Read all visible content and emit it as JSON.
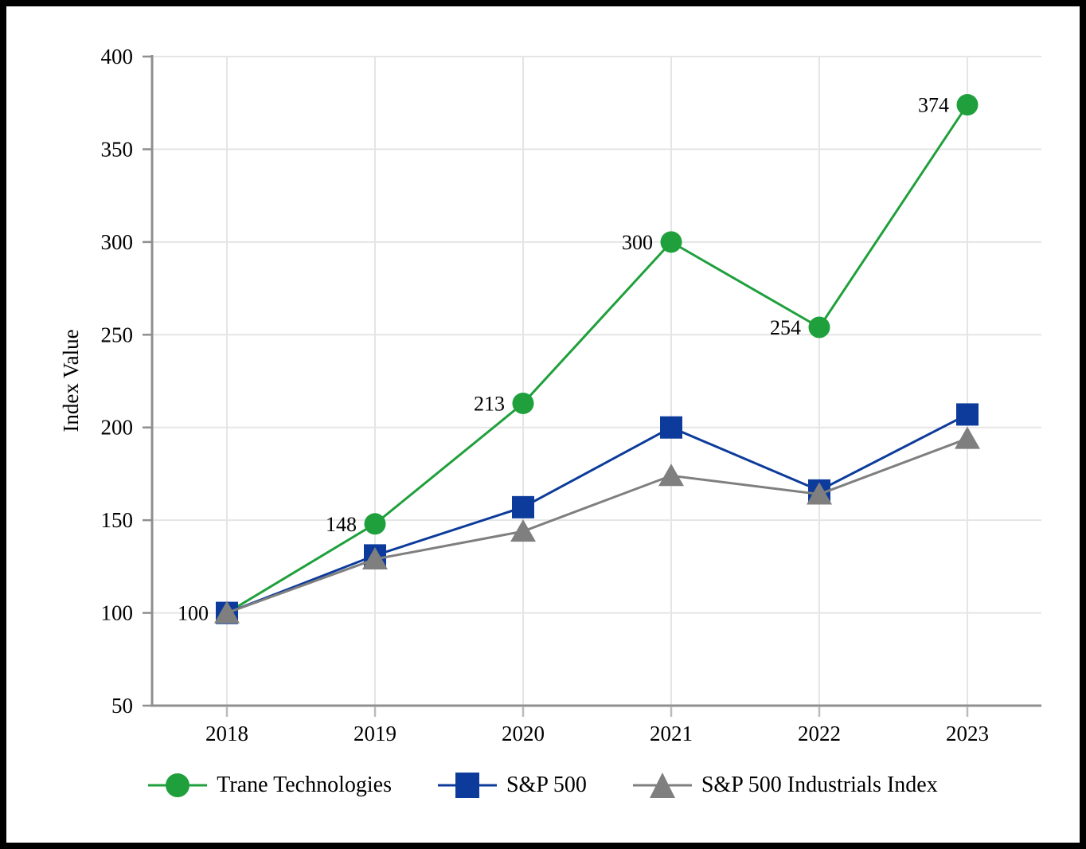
{
  "figure": {
    "background": "#ffffff",
    "border_color": "#000000"
  },
  "chart_data": {
    "type": "line",
    "title": "",
    "xlabel": "",
    "ylabel": "Index Value",
    "categories": [
      "2018",
      "2019",
      "2020",
      "2021",
      "2022",
      "2023"
    ],
    "ylim": [
      50,
      400
    ],
    "yticks": [
      50,
      100,
      150,
      200,
      250,
      300,
      350,
      400
    ],
    "grid": "both",
    "legend_position": "bottom",
    "series": [
      {
        "name": "Trane Technologies",
        "marker": "circle",
        "color": "#1FA03C",
        "values": [
          100,
          148,
          213,
          300,
          254,
          374
        ],
        "data_labels": [
          "100",
          "148",
          "213",
          "300",
          "254",
          "374"
        ]
      },
      {
        "name": "S&P 500",
        "marker": "square",
        "color": "#0D3B9B",
        "values": [
          100,
          131,
          157,
          200,
          166,
          207
        ],
        "data_labels": []
      },
      {
        "name": "S&P 500 Industrials Index",
        "marker": "triangle",
        "color": "#7F7F7F",
        "values": [
          100,
          129,
          144,
          174,
          164,
          194
        ],
        "data_labels": []
      }
    ],
    "colors": {
      "gridline": "#E5E5E5",
      "axis": "#8F8F8F",
      "minor_tick": "#BBBBBB",
      "tick_label": "#000000",
      "data_label": "#000000"
    }
  }
}
